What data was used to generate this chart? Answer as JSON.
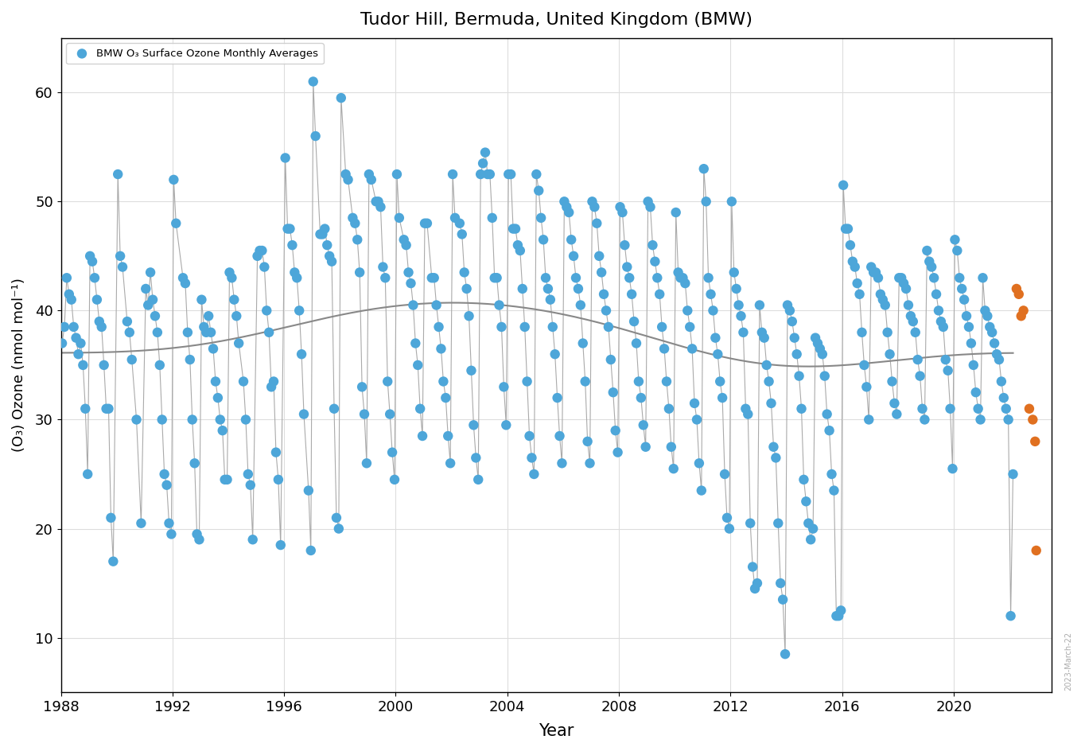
{
  "title": "Tudor Hill, Bermuda, United Kingdom (BMW)",
  "xlabel": "Year",
  "ylabel": "(O₃) Ozone (nmol mol⁻¹)",
  "legend_label": "BMW O₃ Surface Ozone Monthly Averages",
  "ylim": [
    5,
    65
  ],
  "xlim": [
    1988.0,
    2023.5
  ],
  "yticks": [
    10,
    20,
    30,
    40,
    50,
    60
  ],
  "xticks": [
    1988,
    1992,
    1996,
    2000,
    2004,
    2008,
    2012,
    2016,
    2020
  ],
  "dot_color_blue": "#4da6d9",
  "dot_color_orange": "#e07020",
  "line_color": "#aaaaaa",
  "smooth_color": "#888888",
  "watermark": "2023-March-22",
  "monthly_data": [
    [
      1988.042,
      37.0
    ],
    [
      1988.125,
      38.5
    ],
    [
      1988.208,
      43.0
    ],
    [
      1988.292,
      41.5
    ],
    [
      1988.375,
      41.0
    ],
    [
      1988.458,
      38.5
    ],
    [
      1988.542,
      37.5
    ],
    [
      1988.625,
      36.0
    ],
    [
      1988.708,
      37.0
    ],
    [
      1988.792,
      35.0
    ],
    [
      1988.875,
      31.0
    ],
    [
      1988.958,
      25.0
    ],
    [
      1989.042,
      45.0
    ],
    [
      1989.125,
      44.5
    ],
    [
      1989.208,
      43.0
    ],
    [
      1989.292,
      41.0
    ],
    [
      1989.375,
      39.0
    ],
    [
      1989.458,
      38.5
    ],
    [
      1989.542,
      35.0
    ],
    [
      1989.625,
      31.0
    ],
    [
      1989.708,
      31.0
    ],
    [
      1989.792,
      21.0
    ],
    [
      1989.875,
      17.0
    ],
    [
      1990.042,
      52.5
    ],
    [
      1990.125,
      45.0
    ],
    [
      1990.208,
      44.0
    ],
    [
      1990.375,
      39.0
    ],
    [
      1990.458,
      38.0
    ],
    [
      1990.542,
      35.5
    ],
    [
      1990.708,
      30.0
    ],
    [
      1990.875,
      20.5
    ],
    [
      1991.042,
      42.0
    ],
    [
      1991.125,
      40.5
    ],
    [
      1991.208,
      43.5
    ],
    [
      1991.292,
      41.0
    ],
    [
      1991.375,
      39.5
    ],
    [
      1991.458,
      38.0
    ],
    [
      1991.542,
      35.0
    ],
    [
      1991.625,
      30.0
    ],
    [
      1991.708,
      25.0
    ],
    [
      1991.792,
      24.0
    ],
    [
      1991.875,
      20.5
    ],
    [
      1991.958,
      19.5
    ],
    [
      1992.042,
      52.0
    ],
    [
      1992.125,
      48.0
    ],
    [
      1992.375,
      43.0
    ],
    [
      1992.458,
      42.5
    ],
    [
      1992.542,
      38.0
    ],
    [
      1992.625,
      35.5
    ],
    [
      1992.708,
      30.0
    ],
    [
      1992.792,
      26.0
    ],
    [
      1992.875,
      19.5
    ],
    [
      1992.958,
      19.0
    ],
    [
      1993.042,
      41.0
    ],
    [
      1993.125,
      38.5
    ],
    [
      1993.208,
      38.0
    ],
    [
      1993.292,
      39.5
    ],
    [
      1993.375,
      38.0
    ],
    [
      1993.458,
      36.5
    ],
    [
      1993.542,
      33.5
    ],
    [
      1993.625,
      32.0
    ],
    [
      1993.708,
      30.0
    ],
    [
      1993.792,
      29.0
    ],
    [
      1993.875,
      24.5
    ],
    [
      1993.958,
      24.5
    ],
    [
      1994.042,
      43.5
    ],
    [
      1994.125,
      43.0
    ],
    [
      1994.208,
      41.0
    ],
    [
      1994.292,
      39.5
    ],
    [
      1994.375,
      37.0
    ],
    [
      1994.542,
      33.5
    ],
    [
      1994.625,
      30.0
    ],
    [
      1994.708,
      25.0
    ],
    [
      1994.792,
      24.0
    ],
    [
      1994.875,
      19.0
    ],
    [
      1995.042,
      45.0
    ],
    [
      1995.125,
      45.5
    ],
    [
      1995.208,
      45.5
    ],
    [
      1995.292,
      44.0
    ],
    [
      1995.375,
      40.0
    ],
    [
      1995.458,
      38.0
    ],
    [
      1995.542,
      33.0
    ],
    [
      1995.625,
      33.5
    ],
    [
      1995.708,
      27.0
    ],
    [
      1995.792,
      24.5
    ],
    [
      1995.875,
      18.5
    ],
    [
      1996.042,
      54.0
    ],
    [
      1996.125,
      47.5
    ],
    [
      1996.208,
      47.5
    ],
    [
      1996.292,
      46.0
    ],
    [
      1996.375,
      43.5
    ],
    [
      1996.458,
      43.0
    ],
    [
      1996.542,
      40.0
    ],
    [
      1996.625,
      36.0
    ],
    [
      1996.708,
      30.5
    ],
    [
      1996.875,
      23.5
    ],
    [
      1996.958,
      18.0
    ],
    [
      1997.042,
      61.0
    ],
    [
      1997.125,
      56.0
    ],
    [
      1997.292,
      47.0
    ],
    [
      1997.375,
      47.0
    ],
    [
      1997.458,
      47.5
    ],
    [
      1997.542,
      46.0
    ],
    [
      1997.625,
      45.0
    ],
    [
      1997.708,
      44.5
    ],
    [
      1997.792,
      31.0
    ],
    [
      1997.875,
      21.0
    ],
    [
      1997.958,
      20.0
    ],
    [
      1998.042,
      59.5
    ],
    [
      1998.208,
      52.5
    ],
    [
      1998.292,
      52.0
    ],
    [
      1998.458,
      48.5
    ],
    [
      1998.542,
      48.0
    ],
    [
      1998.625,
      46.5
    ],
    [
      1998.708,
      43.5
    ],
    [
      1998.792,
      33.0
    ],
    [
      1998.875,
      30.5
    ],
    [
      1998.958,
      26.0
    ],
    [
      1999.042,
      52.5
    ],
    [
      1999.125,
      52.0
    ],
    [
      1999.292,
      50.0
    ],
    [
      1999.375,
      50.0
    ],
    [
      1999.458,
      49.5
    ],
    [
      1999.542,
      44.0
    ],
    [
      1999.625,
      43.0
    ],
    [
      1999.708,
      33.5
    ],
    [
      1999.792,
      30.5
    ],
    [
      1999.875,
      27.0
    ],
    [
      1999.958,
      24.5
    ],
    [
      2000.042,
      52.5
    ],
    [
      2000.125,
      48.5
    ],
    [
      2000.292,
      46.5
    ],
    [
      2000.375,
      46.0
    ],
    [
      2000.458,
      43.5
    ],
    [
      2000.542,
      42.5
    ],
    [
      2000.625,
      40.5
    ],
    [
      2000.708,
      37.0
    ],
    [
      2000.792,
      35.0
    ],
    [
      2000.875,
      31.0
    ],
    [
      2000.958,
      28.5
    ],
    [
      2001.042,
      48.0
    ],
    [
      2001.125,
      48.0
    ],
    [
      2001.292,
      43.0
    ],
    [
      2001.375,
      43.0
    ],
    [
      2001.458,
      40.5
    ],
    [
      2001.542,
      38.5
    ],
    [
      2001.625,
      36.5
    ],
    [
      2001.708,
      33.5
    ],
    [
      2001.792,
      32.0
    ],
    [
      2001.875,
      28.5
    ],
    [
      2001.958,
      26.0
    ],
    [
      2002.042,
      52.5
    ],
    [
      2002.125,
      48.5
    ],
    [
      2002.292,
      48.0
    ],
    [
      2002.375,
      47.0
    ],
    [
      2002.458,
      43.5
    ],
    [
      2002.542,
      42.0
    ],
    [
      2002.625,
      39.5
    ],
    [
      2002.708,
      34.5
    ],
    [
      2002.792,
      29.5
    ],
    [
      2002.875,
      26.5
    ],
    [
      2002.958,
      24.5
    ],
    [
      2003.042,
      52.5
    ],
    [
      2003.125,
      53.5
    ],
    [
      2003.208,
      54.5
    ],
    [
      2003.292,
      52.5
    ],
    [
      2003.375,
      52.5
    ],
    [
      2003.458,
      48.5
    ],
    [
      2003.542,
      43.0
    ],
    [
      2003.625,
      43.0
    ],
    [
      2003.708,
      40.5
    ],
    [
      2003.792,
      38.5
    ],
    [
      2003.875,
      33.0
    ],
    [
      2003.958,
      29.5
    ],
    [
      2004.042,
      52.5
    ],
    [
      2004.125,
      52.5
    ],
    [
      2004.208,
      47.5
    ],
    [
      2004.292,
      47.5
    ],
    [
      2004.375,
      46.0
    ],
    [
      2004.458,
      45.5
    ],
    [
      2004.542,
      42.0
    ],
    [
      2004.625,
      38.5
    ],
    [
      2004.708,
      33.5
    ],
    [
      2004.792,
      28.5
    ],
    [
      2004.875,
      26.5
    ],
    [
      2004.958,
      25.0
    ],
    [
      2005.042,
      52.5
    ],
    [
      2005.125,
      51.0
    ],
    [
      2005.208,
      48.5
    ],
    [
      2005.292,
      46.5
    ],
    [
      2005.375,
      43.0
    ],
    [
      2005.458,
      42.0
    ],
    [
      2005.542,
      41.0
    ],
    [
      2005.625,
      38.5
    ],
    [
      2005.708,
      36.0
    ],
    [
      2005.792,
      32.0
    ],
    [
      2005.875,
      28.5
    ],
    [
      2005.958,
      26.0
    ],
    [
      2006.042,
      50.0
    ],
    [
      2006.125,
      49.5
    ],
    [
      2006.208,
      49.0
    ],
    [
      2006.292,
      46.5
    ],
    [
      2006.375,
      45.0
    ],
    [
      2006.458,
      43.0
    ],
    [
      2006.542,
      42.0
    ],
    [
      2006.625,
      40.5
    ],
    [
      2006.708,
      37.0
    ],
    [
      2006.792,
      33.5
    ],
    [
      2006.875,
      28.0
    ],
    [
      2006.958,
      26.0
    ],
    [
      2007.042,
      50.0
    ],
    [
      2007.125,
      49.5
    ],
    [
      2007.208,
      48.0
    ],
    [
      2007.292,
      45.0
    ],
    [
      2007.375,
      43.5
    ],
    [
      2007.458,
      41.5
    ],
    [
      2007.542,
      40.0
    ],
    [
      2007.625,
      38.5
    ],
    [
      2007.708,
      35.5
    ],
    [
      2007.792,
      32.5
    ],
    [
      2007.875,
      29.0
    ],
    [
      2007.958,
      27.0
    ],
    [
      2008.042,
      49.5
    ],
    [
      2008.125,
      49.0
    ],
    [
      2008.208,
      46.0
    ],
    [
      2008.292,
      44.0
    ],
    [
      2008.375,
      43.0
    ],
    [
      2008.458,
      41.5
    ],
    [
      2008.542,
      39.0
    ],
    [
      2008.625,
      37.0
    ],
    [
      2008.708,
      33.5
    ],
    [
      2008.792,
      32.0
    ],
    [
      2008.875,
      29.5
    ],
    [
      2008.958,
      27.5
    ],
    [
      2009.042,
      50.0
    ],
    [
      2009.125,
      49.5
    ],
    [
      2009.208,
      46.0
    ],
    [
      2009.292,
      44.5
    ],
    [
      2009.375,
      43.0
    ],
    [
      2009.458,
      41.5
    ],
    [
      2009.542,
      38.5
    ],
    [
      2009.625,
      36.5
    ],
    [
      2009.708,
      33.5
    ],
    [
      2009.792,
      31.0
    ],
    [
      2009.875,
      27.5
    ],
    [
      2009.958,
      25.5
    ],
    [
      2010.042,
      49.0
    ],
    [
      2010.125,
      43.5
    ],
    [
      2010.208,
      43.0
    ],
    [
      2010.292,
      43.0
    ],
    [
      2010.375,
      42.5
    ],
    [
      2010.458,
      40.0
    ],
    [
      2010.542,
      38.5
    ],
    [
      2010.625,
      36.5
    ],
    [
      2010.708,
      31.5
    ],
    [
      2010.792,
      30.0
    ],
    [
      2010.875,
      26.0
    ],
    [
      2010.958,
      23.5
    ],
    [
      2011.042,
      53.0
    ],
    [
      2011.125,
      50.0
    ],
    [
      2011.208,
      43.0
    ],
    [
      2011.292,
      41.5
    ],
    [
      2011.375,
      40.0
    ],
    [
      2011.458,
      37.5
    ],
    [
      2011.542,
      36.0
    ],
    [
      2011.625,
      33.5
    ],
    [
      2011.708,
      32.0
    ],
    [
      2011.792,
      25.0
    ],
    [
      2011.875,
      21.0
    ],
    [
      2011.958,
      20.0
    ],
    [
      2012.042,
      50.0
    ],
    [
      2012.125,
      43.5
    ],
    [
      2012.208,
      42.0
    ],
    [
      2012.292,
      40.5
    ],
    [
      2012.375,
      39.5
    ],
    [
      2012.458,
      38.0
    ],
    [
      2012.542,
      31.0
    ],
    [
      2012.625,
      30.5
    ],
    [
      2012.708,
      20.5
    ],
    [
      2012.792,
      16.5
    ],
    [
      2012.875,
      14.5
    ],
    [
      2012.958,
      15.0
    ],
    [
      2013.042,
      40.5
    ],
    [
      2013.125,
      38.0
    ],
    [
      2013.208,
      37.5
    ],
    [
      2013.292,
      35.0
    ],
    [
      2013.375,
      33.5
    ],
    [
      2013.458,
      31.5
    ],
    [
      2013.542,
      27.5
    ],
    [
      2013.625,
      26.5
    ],
    [
      2013.708,
      20.5
    ],
    [
      2013.792,
      15.0
    ],
    [
      2013.875,
      13.5
    ],
    [
      2013.958,
      8.5
    ],
    [
      2014.042,
      40.5
    ],
    [
      2014.125,
      40.0
    ],
    [
      2014.208,
      39.0
    ],
    [
      2014.292,
      37.5
    ],
    [
      2014.375,
      36.0
    ],
    [
      2014.458,
      34.0
    ],
    [
      2014.542,
      31.0
    ],
    [
      2014.625,
      24.5
    ],
    [
      2014.708,
      22.5
    ],
    [
      2014.792,
      20.5
    ],
    [
      2014.875,
      19.0
    ],
    [
      2014.958,
      20.0
    ],
    [
      2015.042,
      37.5
    ],
    [
      2015.125,
      37.0
    ],
    [
      2015.208,
      36.5
    ],
    [
      2015.292,
      36.0
    ],
    [
      2015.375,
      34.0
    ],
    [
      2015.458,
      30.5
    ],
    [
      2015.542,
      29.0
    ],
    [
      2015.625,
      25.0
    ],
    [
      2015.708,
      23.5
    ],
    [
      2015.792,
      12.0
    ],
    [
      2015.875,
      12.0
    ],
    [
      2015.958,
      12.5
    ],
    [
      2016.042,
      51.5
    ],
    [
      2016.125,
      47.5
    ],
    [
      2016.208,
      47.5
    ],
    [
      2016.292,
      46.0
    ],
    [
      2016.375,
      44.5
    ],
    [
      2016.458,
      44.0
    ],
    [
      2016.542,
      42.5
    ],
    [
      2016.625,
      41.5
    ],
    [
      2016.708,
      38.0
    ],
    [
      2016.792,
      35.0
    ],
    [
      2016.875,
      33.0
    ],
    [
      2016.958,
      30.0
    ],
    [
      2017.042,
      44.0
    ],
    [
      2017.125,
      43.5
    ],
    [
      2017.208,
      43.5
    ],
    [
      2017.292,
      43.0
    ],
    [
      2017.375,
      41.5
    ],
    [
      2017.458,
      41.0
    ],
    [
      2017.542,
      40.5
    ],
    [
      2017.625,
      38.0
    ],
    [
      2017.708,
      36.0
    ],
    [
      2017.792,
      33.5
    ],
    [
      2017.875,
      31.5
    ],
    [
      2017.958,
      30.5
    ],
    [
      2018.042,
      43.0
    ],
    [
      2018.125,
      43.0
    ],
    [
      2018.208,
      42.5
    ],
    [
      2018.292,
      42.0
    ],
    [
      2018.375,
      40.5
    ],
    [
      2018.458,
      39.5
    ],
    [
      2018.542,
      39.0
    ],
    [
      2018.625,
      38.0
    ],
    [
      2018.708,
      35.5
    ],
    [
      2018.792,
      34.0
    ],
    [
      2018.875,
      31.0
    ],
    [
      2018.958,
      30.0
    ],
    [
      2019.042,
      45.5
    ],
    [
      2019.125,
      44.5
    ],
    [
      2019.208,
      44.0
    ],
    [
      2019.292,
      43.0
    ],
    [
      2019.375,
      41.5
    ],
    [
      2019.458,
      40.0
    ],
    [
      2019.542,
      39.0
    ],
    [
      2019.625,
      38.5
    ],
    [
      2019.708,
      35.5
    ],
    [
      2019.792,
      34.5
    ],
    [
      2019.875,
      31.0
    ],
    [
      2019.958,
      25.5
    ],
    [
      2020.042,
      46.5
    ],
    [
      2020.125,
      45.5
    ],
    [
      2020.208,
      43.0
    ],
    [
      2020.292,
      42.0
    ],
    [
      2020.375,
      41.0
    ],
    [
      2020.458,
      39.5
    ],
    [
      2020.542,
      38.5
    ],
    [
      2020.625,
      37.0
    ],
    [
      2020.708,
      35.0
    ],
    [
      2020.792,
      32.5
    ],
    [
      2020.875,
      31.0
    ],
    [
      2020.958,
      30.0
    ],
    [
      2021.042,
      43.0
    ],
    [
      2021.125,
      40.0
    ],
    [
      2021.208,
      39.5
    ],
    [
      2021.292,
      38.5
    ],
    [
      2021.375,
      38.0
    ],
    [
      2021.458,
      37.0
    ],
    [
      2021.542,
      36.0
    ],
    [
      2021.625,
      35.5
    ],
    [
      2021.708,
      33.5
    ],
    [
      2021.792,
      32.0
    ],
    [
      2021.875,
      31.0
    ],
    [
      2021.958,
      30.0
    ],
    [
      2022.042,
      12.0
    ],
    [
      2022.125,
      25.0
    ]
  ],
  "orange_data": [
    [
      2022.25,
      42.0
    ],
    [
      2022.333,
      41.5
    ],
    [
      2022.417,
      39.5
    ],
    [
      2022.5,
      40.0
    ],
    [
      2022.708,
      31.0
    ],
    [
      2022.833,
      30.0
    ],
    [
      2022.917,
      28.0
    ],
    [
      2022.958,
      18.0
    ]
  ],
  "gap_years": [
    1990,
    1992,
    1994,
    1996,
    1998,
    2000
  ]
}
